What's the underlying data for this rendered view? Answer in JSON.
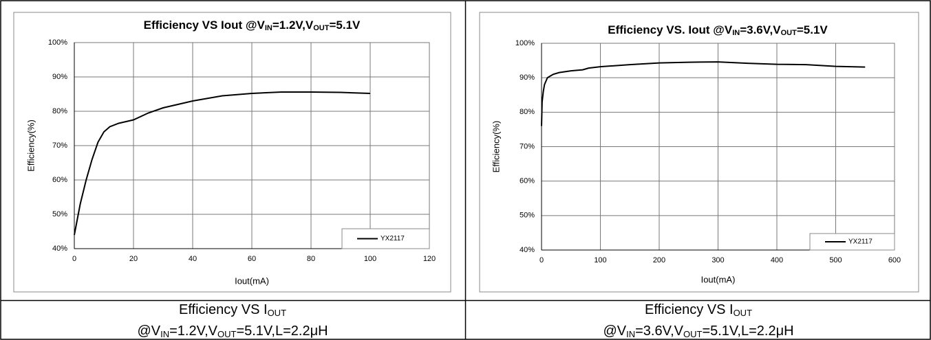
{
  "chart_data": [
    {
      "type": "line",
      "title": [
        {
          "text": "Efficiency VS Iout @V"
        },
        {
          "text": "IN",
          "sub": true
        },
        {
          "text": "=1.2V,V"
        },
        {
          "text": "OUT",
          "sub": true
        },
        {
          "text": "=5.1V"
        }
      ],
      "x_label": "Iout(mA)",
      "y_label": "Efficiency(%)",
      "xlim": [
        0,
        120
      ],
      "xticks": [
        0,
        20,
        40,
        60,
        80,
        100,
        120
      ],
      "ylim": [
        40,
        100
      ],
      "yticks": [
        {
          "value": 40,
          "label": "40%"
        },
        {
          "value": 50,
          "label": "50%"
        },
        {
          "value": 60,
          "label": "60%"
        },
        {
          "value": 70,
          "label": "70%"
        },
        {
          "value": 80,
          "label": "80%"
        },
        {
          "value": 90,
          "label": "90%"
        },
        {
          "value": 100,
          "label": "100%"
        }
      ],
      "grid": true,
      "legend": "lower right",
      "series": [
        {
          "name": "YX2117",
          "color": "#000000",
          "x": [
            0,
            2,
            4,
            6,
            8,
            10,
            12,
            15,
            20,
            25,
            30,
            40,
            50,
            60,
            70,
            80,
            90,
            100
          ],
          "values": [
            44,
            53,
            60,
            66,
            71,
            74,
            75.5,
            76.5,
            77.5,
            79.5,
            81,
            83,
            84.5,
            85.2,
            85.6,
            85.6,
            85.5,
            85.2
          ]
        }
      ]
    },
    {
      "type": "line",
      "title": [
        {
          "text": "Efficiency VS. Iout @V"
        },
        {
          "text": "IN",
          "sub": true
        },
        {
          "text": "=3.6V,V"
        },
        {
          "text": "OUT",
          "sub": true
        },
        {
          "text": "=5.1V"
        }
      ],
      "x_label": "Iout(mA)",
      "y_label": "Efficiency(%)",
      "xlim": [
        0,
        600
      ],
      "xticks": [
        0,
        100,
        200,
        300,
        400,
        500,
        600
      ],
      "ylim": [
        40,
        100
      ],
      "yticks": [
        {
          "value": 40,
          "label": "40%"
        },
        {
          "value": 50,
          "label": "50%"
        },
        {
          "value": 60,
          "label": "60%"
        },
        {
          "value": 70,
          "label": "70%"
        },
        {
          "value": 80,
          "label": "80%"
        },
        {
          "value": 90,
          "label": "90%"
        },
        {
          "value": 100,
          "label": "100%"
        }
      ],
      "grid": true,
      "legend": "lower right",
      "series": [
        {
          "name": "YX2117",
          "color": "#000000",
          "x": [
            0,
            1,
            3,
            5,
            10,
            15,
            20,
            30,
            50,
            70,
            80,
            100,
            150,
            200,
            250,
            300,
            350,
            400,
            450,
            500,
            550
          ],
          "values": [
            76,
            83,
            86,
            88,
            90,
            90.5,
            91,
            91.5,
            92,
            92.3,
            92.8,
            93.2,
            93.8,
            94.3,
            94.5,
            94.6,
            94.2,
            93.9,
            93.8,
            93.3,
            93.1
          ]
        }
      ]
    }
  ],
  "captions": [
    [
      [
        {
          "text": "Efficiency VS I"
        },
        {
          "text": "OUT",
          "sub": true
        }
      ],
      [
        {
          "text": "@V"
        },
        {
          "text": "IN",
          "sub": true
        },
        {
          "text": "=1.2V,V"
        },
        {
          "text": "OUT",
          "sub": true
        },
        {
          "text": "=5.1V,L=2.2μH"
        }
      ]
    ],
    [
      [
        {
          "text": "Efficiency VS I"
        },
        {
          "text": "OUT",
          "sub": true
        }
      ],
      [
        {
          "text": "@V"
        },
        {
          "text": "IN",
          "sub": true
        },
        {
          "text": "=3.6V,V"
        },
        {
          "text": "OUT",
          "sub": true
        },
        {
          "text": "=5.1V,L=2.2μH"
        }
      ]
    ]
  ]
}
